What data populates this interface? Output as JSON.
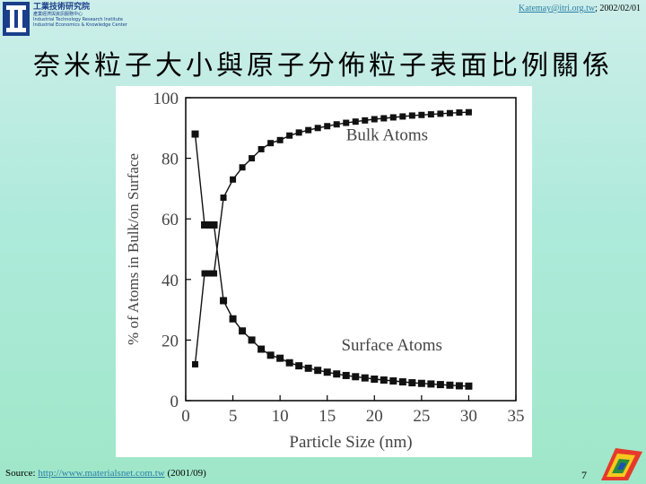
{
  "header": {
    "logo_cn": "工業技術研究院",
    "logo_cn_sub": "產業經濟與資訊服務中心",
    "logo_en_1": "Industrial Technology Research Institute",
    "logo_en_2": "Industrial Economics & Knowledge Center",
    "email": "Katemay@itri.org.tw",
    "date": "; 2002/02/01"
  },
  "title": "奈米粒子大小與原子分佈粒子表面比例關係",
  "footer": {
    "source_label": "Source: ",
    "source_url": "http://www.materialsnet.com.tw",
    "source_date": " (2001/09)",
    "page_number": "7"
  },
  "colors": {
    "title": "#000000",
    "link": "#2b7fa6"
  },
  "chart_data": {
    "type": "line",
    "xlabel": "Particle Size (nm)",
    "ylabel": "% of Atoms in Bulk/on Surface",
    "xlim": [
      0,
      35
    ],
    "ylim": [
      0,
      100
    ],
    "xticks": [
      "0",
      "5",
      "10",
      "15",
      "20",
      "25",
      "30",
      "35"
    ],
    "yticks": [
      "0",
      "20",
      "40",
      "60",
      "80",
      "100"
    ],
    "grid": false,
    "series": [
      {
        "name": "Bulk Atoms",
        "x": [
          1,
          2,
          2.5,
          3,
          4,
          5,
          6,
          7,
          8,
          9,
          10,
          11,
          12,
          13,
          14,
          15,
          16,
          17,
          18,
          19,
          20,
          21,
          22,
          23,
          24,
          25,
          26,
          27,
          28,
          29,
          30
        ],
        "y": [
          12,
          42,
          42,
          42,
          67,
          73,
          77,
          80,
          83,
          85,
          86,
          87.5,
          88.5,
          89.3,
          90,
          90.6,
          91.2,
          91.7,
          92.1,
          92.5,
          92.9,
          93.2,
          93.5,
          93.8,
          94.1,
          94.3,
          94.5,
          94.7,
          94.9,
          95.1,
          95.2
        ]
      },
      {
        "name": "Surface Atoms",
        "x": [
          1,
          2,
          2.5,
          3,
          4,
          5,
          6,
          7,
          8,
          9,
          10,
          11,
          12,
          13,
          14,
          15,
          16,
          17,
          18,
          19,
          20,
          21,
          22,
          23,
          24,
          25,
          26,
          27,
          28,
          29,
          30
        ],
        "y": [
          88,
          58,
          58,
          58,
          33,
          27,
          23,
          20,
          17,
          15,
          14,
          12.5,
          11.5,
          10.7,
          10,
          9.4,
          8.8,
          8.3,
          7.9,
          7.5,
          7.1,
          6.8,
          6.5,
          6.2,
          5.9,
          5.7,
          5.5,
          5.3,
          5.1,
          4.9,
          4.8
        ]
      }
    ]
  }
}
